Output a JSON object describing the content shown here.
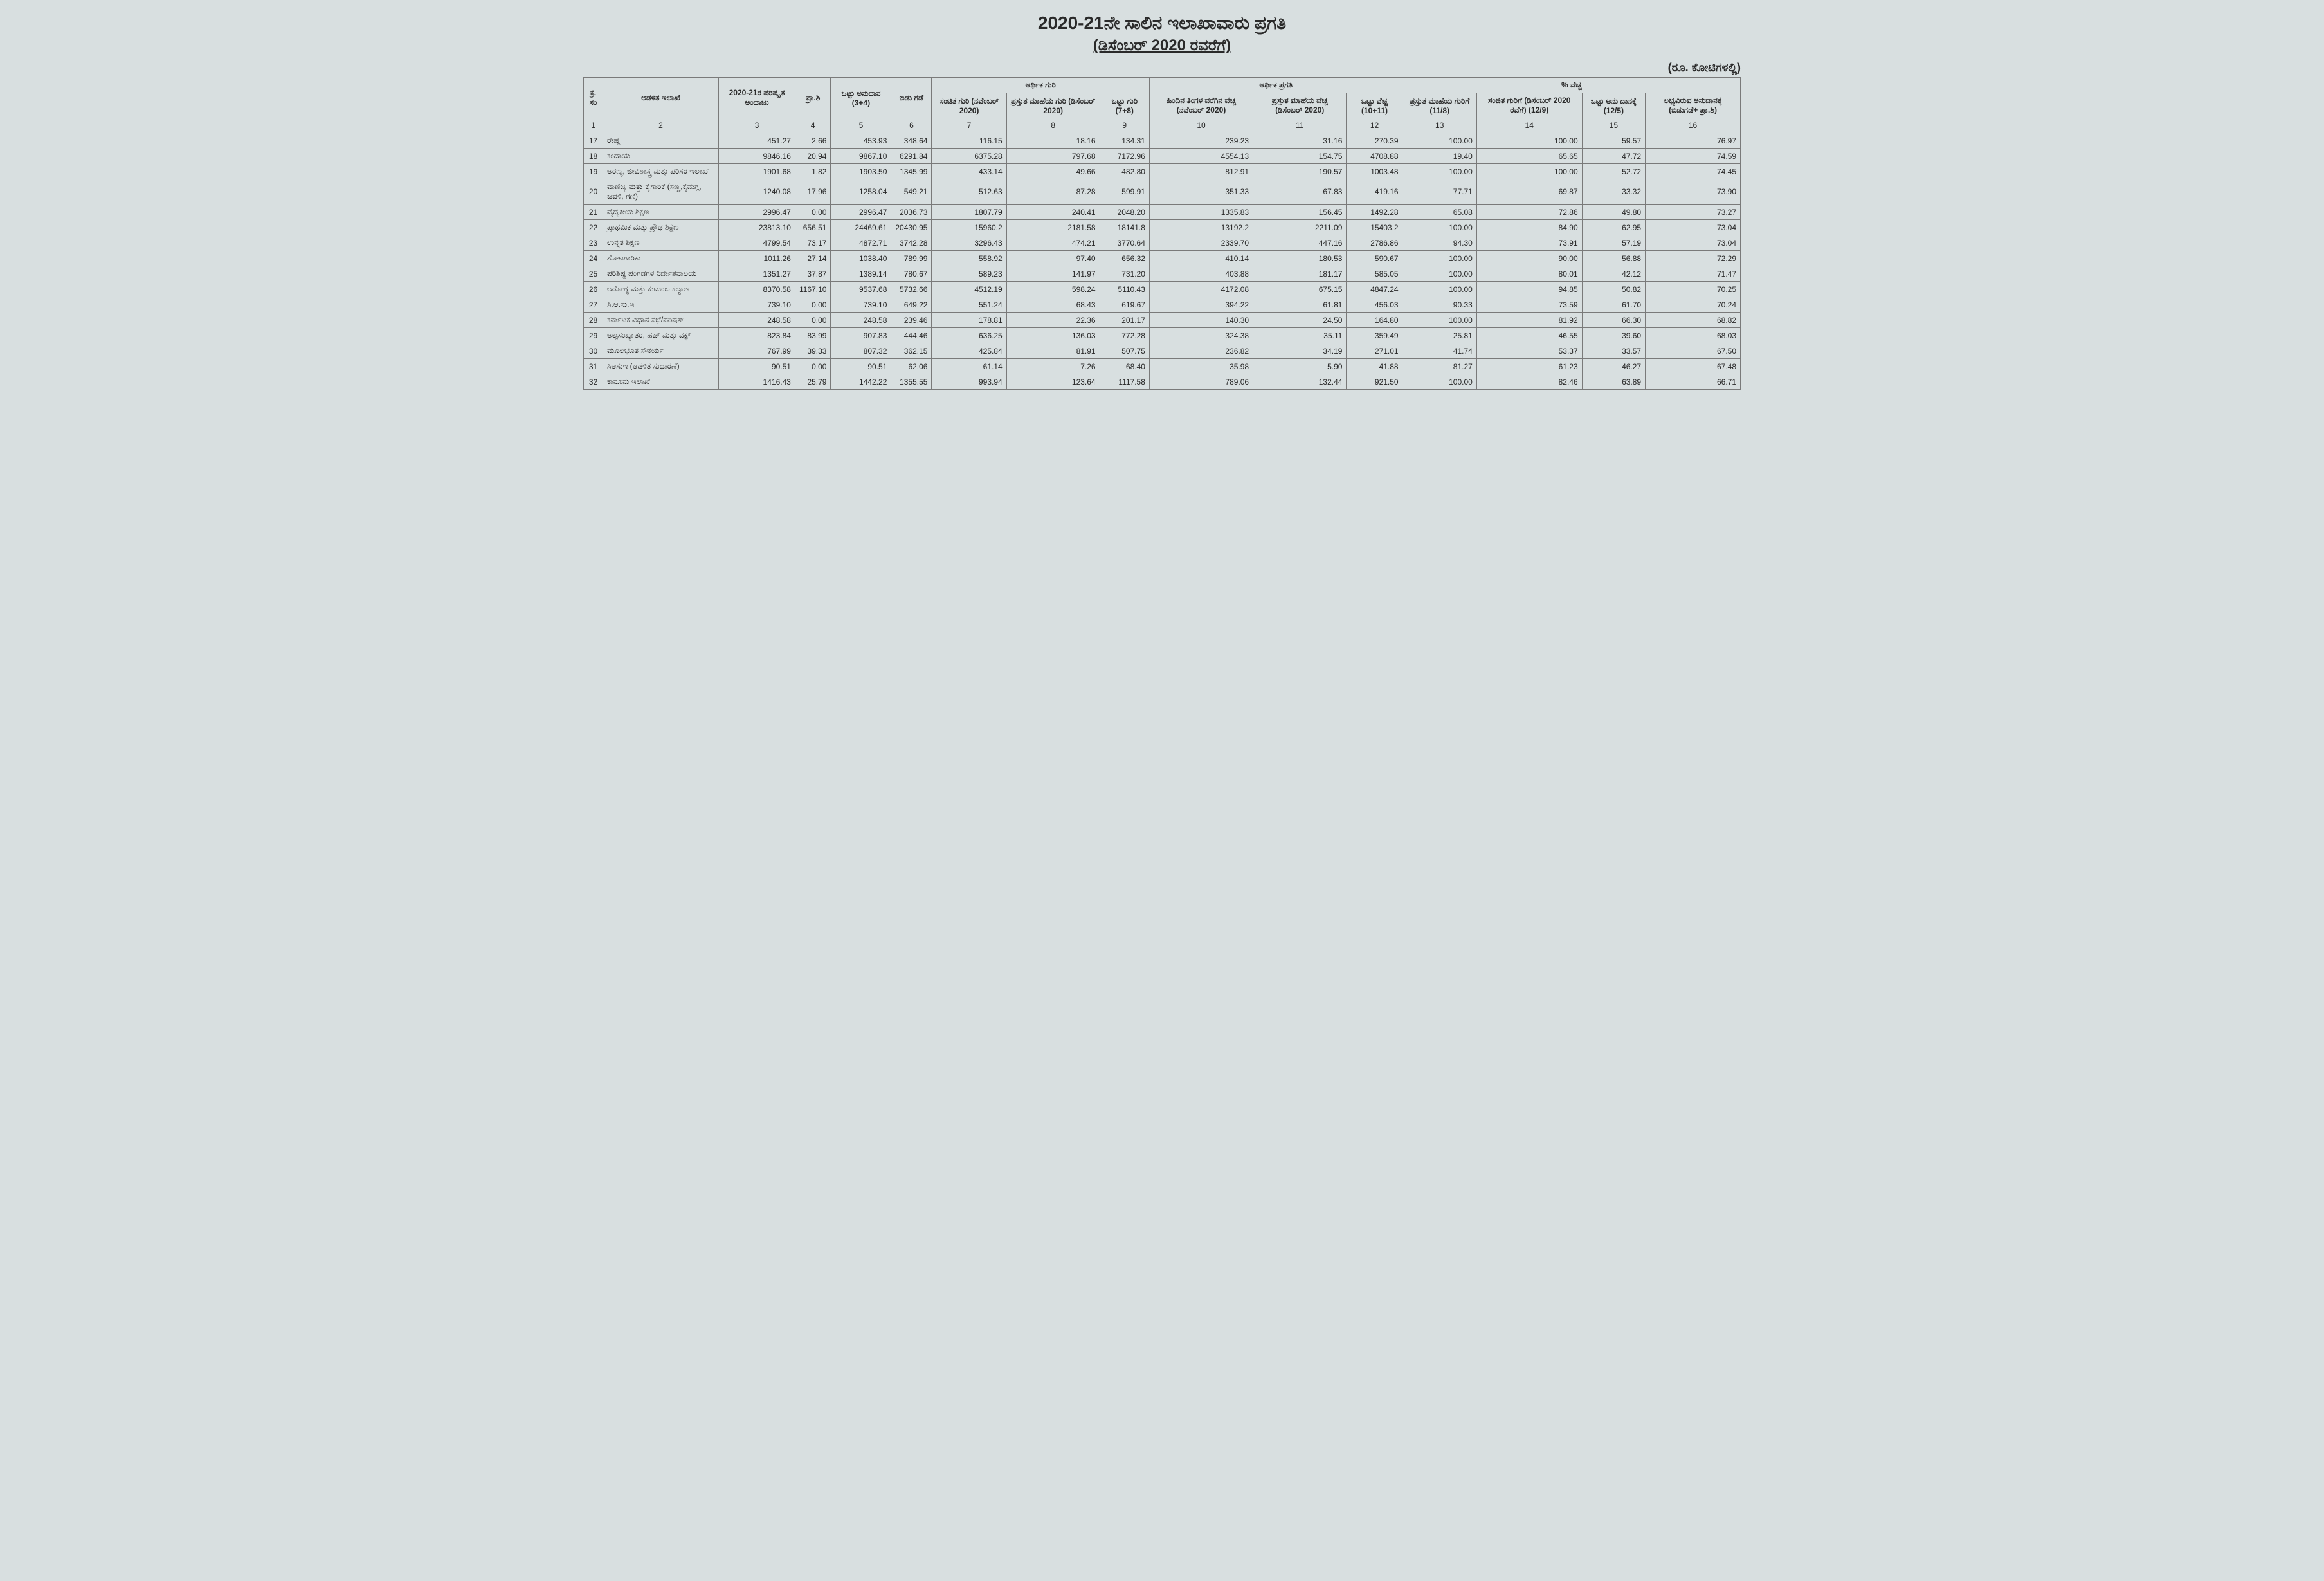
{
  "title": {
    "main": "2020-21ನೇ ಸಾಲಿನ ಇಲಾಖಾವಾರು ಪ್ರಗತಿ",
    "sub": "(ಡಿಸೆಂಬರ್ 2020 ರವರೆಗೆ)",
    "unit": "(ರೂ. ಕೋಟಿಗಳಲ್ಲಿ)"
  },
  "headers": {
    "group_financial_target": "ಆರ್ಥಿಕ ಗುರಿ",
    "group_financial_progress": "ಆರ್ಥಿಕ ಪ್ರಗತಿ",
    "group_percent_exp": "% ವೆಚ್ಚ",
    "sno": "ಕ್ರ. ಸಂ",
    "dept": "ಆಡಳಿತ ಇಲಾಖೆ",
    "revised_estimate": "2020-21ರ ಪರಿಷ್ಕೃತ ಅಂದಾಜು",
    "pra_shi": "ಪ್ರಾ.ಶಿ",
    "total_grant": "ಒಟ್ಟು ಅನುದಾನ (3+4)",
    "release": "ಬಿಡು ಗಡೆ",
    "cum_target": "ಸಂಚಿತ ಗುರಿ (ನವೆಂಬರ್ 2020)",
    "curr_month_target": "ಪ್ರಸ್ತುತ ಮಾಹೆಯ ಗುರಿ (ಡಿಸೆಂಬರ್ 2020)",
    "total_target": "ಒಟ್ಟು ಗುರಿ (7+8)",
    "prev_month_exp": "ಹಿಂದಿನ ತಿಂಗಳ ವರೆಗಿನ ವೆಚ್ಚ (ನವೆಂಬರ್ 2020)",
    "curr_month_exp": "ಪ್ರಸ್ತುತ ಮಾಹೆಯ ವೆಚ್ಚ (ಡಿಸೆಂಬರ್ 2020)",
    "total_exp": "ಒಟ್ಟು ವೆಚ್ಚ (10+11)",
    "pct_curr_month": "ಪ್ರಸ್ತುತ ಮಾಹೆಯ ಗುರಿಗೆ (11/8)",
    "pct_cum_target": "ಸಂಚಿತ ಗುರಿಗೆ (ಡಿಸೆಂಬರ್ 2020 ರವೆಗೆ) (12/9)",
    "pct_total_grant": "ಒಟ್ಟು ಅನು ದಾನಕ್ಕೆ (12/5)",
    "pct_available": "ಲಭ್ಯವಿರುವ ಅನುದಾನಕ್ಕೆ (ಬಿಡುಗಡೆ+ ಪ್ರಾ.ಶಿ)"
  },
  "colnums": [
    "1",
    "2",
    "3",
    "4",
    "5",
    "6",
    "7",
    "8",
    "9",
    "10",
    "11",
    "12",
    "13",
    "14",
    "15",
    "16"
  ],
  "rows": [
    {
      "sno": "17",
      "dept": "ರೇಷ್ಮೆ",
      "c3": "451.27",
      "c4": "2.66",
      "c5": "453.93",
      "c6": "348.64",
      "c7": "116.15",
      "c8": "18.16",
      "c9": "134.31",
      "c10": "239.23",
      "c11": "31.16",
      "c12": "270.39",
      "c13": "100.00",
      "c14": "100.00",
      "c15": "59.57",
      "c16": "76.97"
    },
    {
      "sno": "18",
      "dept": "ಕಂದಾಯ",
      "c3": "9846.16",
      "c4": "20.94",
      "c5": "9867.10",
      "c6": "6291.84",
      "c7": "6375.28",
      "c8": "797.68",
      "c9": "7172.96",
      "c10": "4554.13",
      "c11": "154.75",
      "c12": "4708.88",
      "c13": "19.40",
      "c14": "65.65",
      "c15": "47.72",
      "c16": "74.59"
    },
    {
      "sno": "19",
      "dept": "ಅರಣ್ಯ, ಜೀವಿಶಾಸ್ತ್ರ ಮತ್ತು ಪರಿಸರ ಇಲಾಖೆ",
      "c3": "1901.68",
      "c4": "1.82",
      "c5": "1903.50",
      "c6": "1345.99",
      "c7": "433.14",
      "c8": "49.66",
      "c9": "482.80",
      "c10": "812.91",
      "c11": "190.57",
      "c12": "1003.48",
      "c13": "100.00",
      "c14": "100.00",
      "c15": "52.72",
      "c16": "74.45"
    },
    {
      "sno": "20",
      "dept": "ವಾಣಿಜ್ಯ ಮತ್ತು ಕೈಗಾರಿಕೆ (ಸಣ್ಣ,ಕೈಮಗ್ಗ, ಜವಳಿ, ಗಣಿ)",
      "c3": "1240.08",
      "c4": "17.96",
      "c5": "1258.04",
      "c6": "549.21",
      "c7": "512.63",
      "c8": "87.28",
      "c9": "599.91",
      "c10": "351.33",
      "c11": "67.83",
      "c12": "419.16",
      "c13": "77.71",
      "c14": "69.87",
      "c15": "33.32",
      "c16": "73.90"
    },
    {
      "sno": "21",
      "dept": "ವೈದ್ಯಕೀಯ ಶಿಕ್ಷಣ",
      "c3": "2996.47",
      "c4": "0.00",
      "c5": "2996.47",
      "c6": "2036.73",
      "c7": "1807.79",
      "c8": "240.41",
      "c9": "2048.20",
      "c10": "1335.83",
      "c11": "156.45",
      "c12": "1492.28",
      "c13": "65.08",
      "c14": "72.86",
      "c15": "49.80",
      "c16": "73.27"
    },
    {
      "sno": "22",
      "dept": "ಪ್ರಾಥಮಿಕ ಮತ್ತು ಪ್ರೌಢ ಶಿಕ್ಷಣ",
      "c3": "23813.10",
      "c4": "656.51",
      "c5": "24469.61",
      "c6": "20430.95",
      "c7": "15960.2",
      "c8": "2181.58",
      "c9": "18141.8",
      "c10": "13192.2",
      "c11": "2211.09",
      "c12": "15403.2",
      "c13": "100.00",
      "c14": "84.90",
      "c15": "62.95",
      "c16": "73.04"
    },
    {
      "sno": "23",
      "dept": "ಉನ್ನತ ಶಿಕ್ಷಣ",
      "c3": "4799.54",
      "c4": "73.17",
      "c5": "4872.71",
      "c6": "3742.28",
      "c7": "3296.43",
      "c8": "474.21",
      "c9": "3770.64",
      "c10": "2339.70",
      "c11": "447.16",
      "c12": "2786.86",
      "c13": "94.30",
      "c14": "73.91",
      "c15": "57.19",
      "c16": "73.04"
    },
    {
      "sno": "24",
      "dept": "ತೋಟಗಾರಿಕಾ",
      "c3": "1011.26",
      "c4": "27.14",
      "c5": "1038.40",
      "c6": "789.99",
      "c7": "558.92",
      "c8": "97.40",
      "c9": "656.32",
      "c10": "410.14",
      "c11": "180.53",
      "c12": "590.67",
      "c13": "100.00",
      "c14": "90.00",
      "c15": "56.88",
      "c16": "72.29"
    },
    {
      "sno": "25",
      "dept": "ಪರಿಶಿಷ್ಟ ಪಂಗಡಗಳ ನಿರ್ದೇಶನಾಲಯ",
      "c3": "1351.27",
      "c4": "37.87",
      "c5": "1389.14",
      "c6": "780.67",
      "c7": "589.23",
      "c8": "141.97",
      "c9": "731.20",
      "c10": "403.88",
      "c11": "181.17",
      "c12": "585.05",
      "c13": "100.00",
      "c14": "80.01",
      "c15": "42.12",
      "c16": "71.47"
    },
    {
      "sno": "26",
      "dept": "ಆರೋಗ್ಯ ಮತ್ತು ಕುಟುಂಬ ಕಲ್ಯಾಣ",
      "c3": "8370.58",
      "c4": "1167.10",
      "c5": "9537.68",
      "c6": "5732.66",
      "c7": "4512.19",
      "c8": "598.24",
      "c9": "5110.43",
      "c10": "4172.08",
      "c11": "675.15",
      "c12": "4847.24",
      "c13": "100.00",
      "c14": "94.85",
      "c15": "50.82",
      "c16": "70.25"
    },
    {
      "sno": "27",
      "dept": "ಸಿ.ಆ.ಸು.ಇ",
      "c3": "739.10",
      "c4": "0.00",
      "c5": "739.10",
      "c6": "649.22",
      "c7": "551.24",
      "c8": "68.43",
      "c9": "619.67",
      "c10": "394.22",
      "c11": "61.81",
      "c12": "456.03",
      "c13": "90.33",
      "c14": "73.59",
      "c15": "61.70",
      "c16": "70.24"
    },
    {
      "sno": "28",
      "dept": "ಕರ್ನಾಟಕ ವಿಧಾನ ಸಭೆ/ಪರಿಷತ್",
      "c3": "248.58",
      "c4": "0.00",
      "c5": "248.58",
      "c6": "239.46",
      "c7": "178.81",
      "c8": "22.36",
      "c9": "201.17",
      "c10": "140.30",
      "c11": "24.50",
      "c12": "164.80",
      "c13": "100.00",
      "c14": "81.92",
      "c15": "66.30",
      "c16": "68.82"
    },
    {
      "sno": "29",
      "dept": "ಅಲ್ಪಸಂಖ್ಯಾತರ, ಹಜ್ ಮತ್ತು ವಕ್ಫ್",
      "c3": "823.84",
      "c4": "83.99",
      "c5": "907.83",
      "c6": "444.46",
      "c7": "636.25",
      "c8": "136.03",
      "c9": "772.28",
      "c10": "324.38",
      "c11": "35.11",
      "c12": "359.49",
      "c13": "25.81",
      "c14": "46.55",
      "c15": "39.60",
      "c16": "68.03"
    },
    {
      "sno": "30",
      "dept": "ಮೂಲಭೂತ ಸೌಕರ್ಯ",
      "c3": "767.99",
      "c4": "39.33",
      "c5": "807.32",
      "c6": "362.15",
      "c7": "425.84",
      "c8": "81.91",
      "c9": "507.75",
      "c10": "236.82",
      "c11": "34.19",
      "c12": "271.01",
      "c13": "41.74",
      "c14": "53.37",
      "c15": "33.57",
      "c16": "67.50"
    },
    {
      "sno": "31",
      "dept": "ಸಿಆಸುಇ (ಆಡಳಿತ ಸುಧಾರಣೆ)",
      "c3": "90.51",
      "c4": "0.00",
      "c5": "90.51",
      "c6": "62.06",
      "c7": "61.14",
      "c8": "7.26",
      "c9": "68.40",
      "c10": "35.98",
      "c11": "5.90",
      "c12": "41.88",
      "c13": "81.27",
      "c14": "61.23",
      "c15": "46.27",
      "c16": "67.48"
    },
    {
      "sno": "32",
      "dept": "ಕಾನೂನು ಇಲಾಖೆ",
      "c3": "1416.43",
      "c4": "25.79",
      "c5": "1442.22",
      "c6": "1355.55",
      "c7": "993.94",
      "c8": "123.64",
      "c9": "1117.58",
      "c10": "789.06",
      "c11": "132.44",
      "c12": "921.50",
      "c13": "100.00",
      "c14": "82.46",
      "c15": "63.89",
      "c16": "66.71"
    }
  ],
  "style": {
    "background": "#d8dfe0",
    "border_color": "#7a7a7a",
    "text_color": "#2a2a2a",
    "title_fontsize": 28,
    "subtitle_fontsize": 24,
    "cell_fontsize": 12
  }
}
